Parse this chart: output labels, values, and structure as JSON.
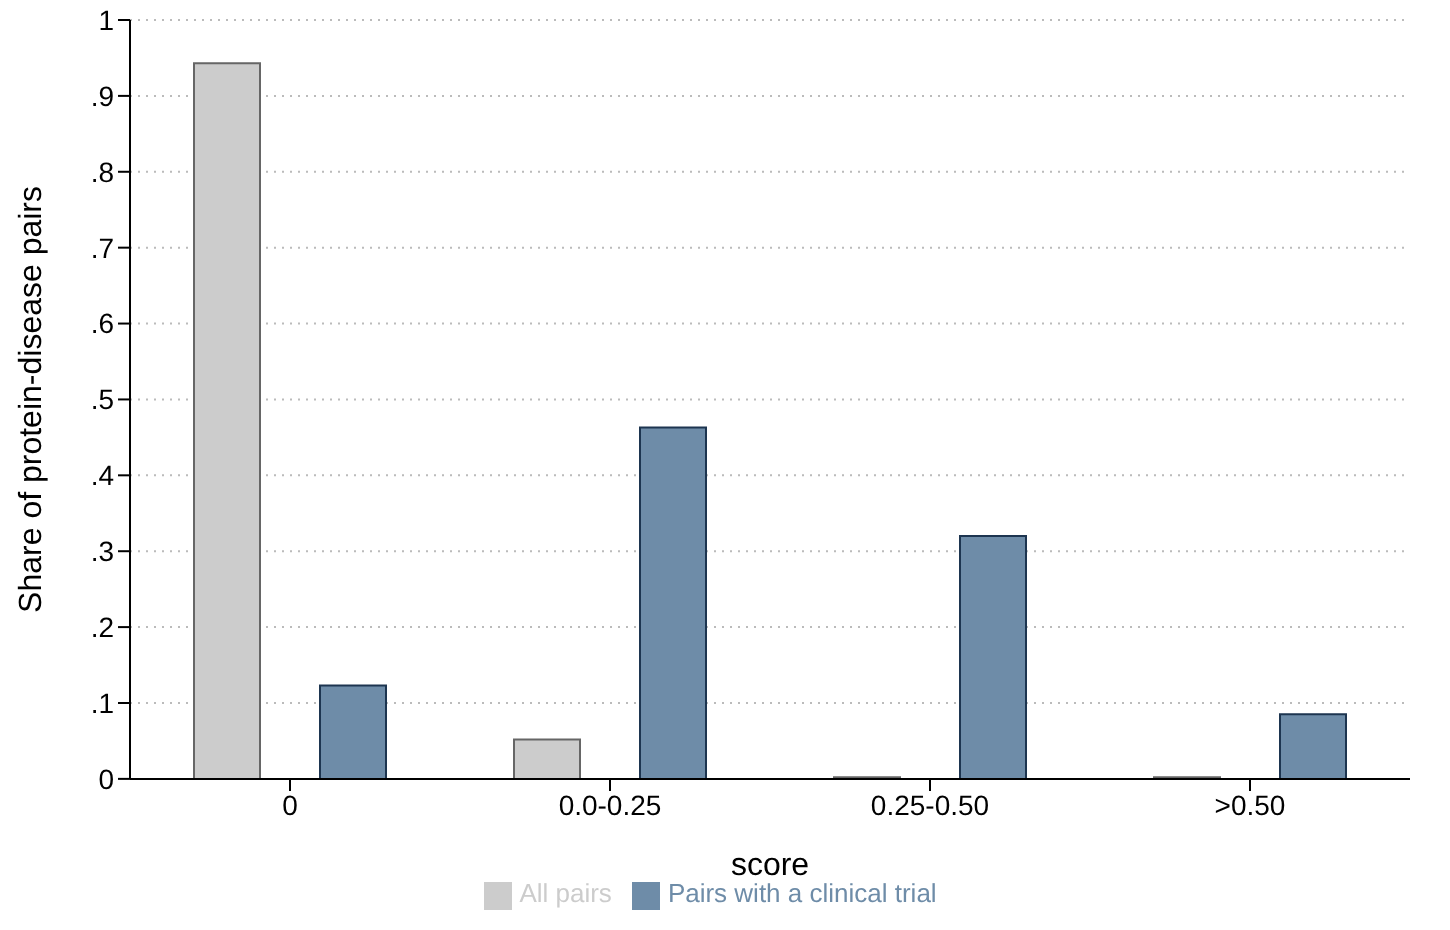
{
  "chart_data": {
    "type": "bar",
    "xlabel": "score",
    "ylabel": "Share of protein-disease pairs",
    "categories": [
      "0",
      "0.0-0.25",
      "0.25-0.50",
      ">0.50"
    ],
    "series": [
      {
        "name": "All pairs",
        "color": "#cccccc",
        "values": [
          0.943,
          0.052,
          0.002,
          0.002
        ]
      },
      {
        "name": "Pairs with a clinical trial",
        "color": "#6e8ca8",
        "values": [
          0.123,
          0.463,
          0.32,
          0.085
        ]
      }
    ],
    "ylim": [
      0,
      1
    ],
    "yticks": [
      0,
      {
        "value": 0.1,
        "label": ".1"
      },
      {
        "value": 0.2,
        "label": ".2"
      },
      {
        "value": 0.3,
        "label": ".3"
      },
      {
        "value": 0.4,
        "label": ".4"
      },
      {
        "value": 0.5,
        "label": ".5"
      },
      {
        "value": 0.6,
        "label": ".6"
      },
      {
        "value": 0.7,
        "label": ".7"
      },
      {
        "value": 0.8,
        "label": ".8"
      },
      {
        "value": 0.9,
        "label": ".9"
      },
      1
    ],
    "grid": "y",
    "legend": "bottom"
  }
}
